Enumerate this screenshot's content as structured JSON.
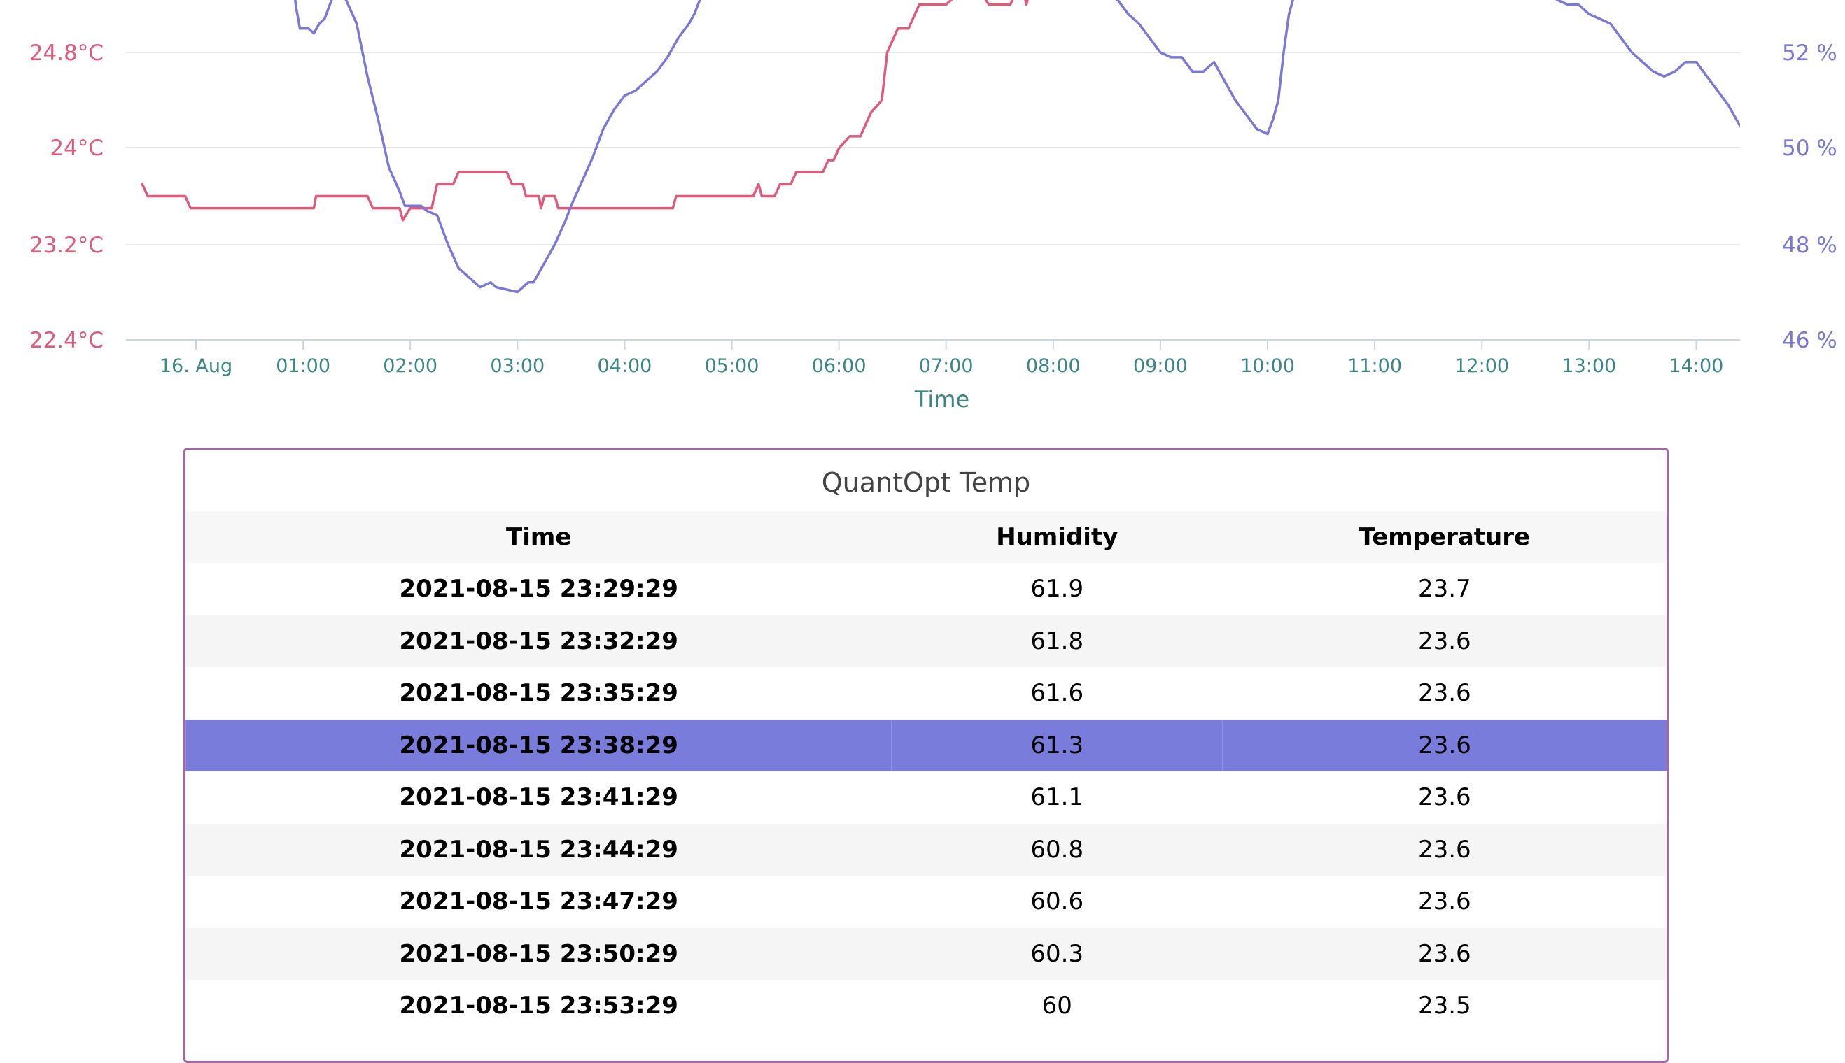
{
  "chart_data": {
    "type": "line",
    "xlabel": "Time",
    "x_ticks": [
      "16. Aug",
      "01:00",
      "02:00",
      "03:00",
      "04:00",
      "05:00",
      "06:00",
      "07:00",
      "08:00",
      "09:00",
      "10:00",
      "11:00",
      "12:00",
      "13:00",
      "14:00"
    ],
    "y_left_ticks": [
      "24.8°C",
      "24°C",
      "23.2°C",
      "22.4°C"
    ],
    "y_right_ticks": [
      "52 %",
      "50 %",
      "48 %",
      "46 %"
    ],
    "y_left_range": [
      22.4,
      25.2
    ],
    "y_right_range": [
      46,
      53
    ],
    "grid": true,
    "colors": {
      "temperature": "#e05a7c",
      "humidity": "#7a7ad6"
    },
    "series": [
      {
        "name": "Temperature",
        "axis": "left",
        "points": [
          [
            -0.5,
            23.7
          ],
          [
            -0.45,
            23.6
          ],
          [
            -0.1,
            23.6
          ],
          [
            -0.05,
            23.5
          ],
          [
            0,
            23.5
          ],
          [
            0.5,
            23.5
          ],
          [
            1.1,
            23.5
          ],
          [
            1.12,
            23.6
          ],
          [
            1.6,
            23.6
          ],
          [
            1.65,
            23.5
          ],
          [
            1.9,
            23.5
          ],
          [
            1.93,
            23.4
          ],
          [
            2.0,
            23.5
          ],
          [
            2.2,
            23.5
          ],
          [
            2.25,
            23.7
          ],
          [
            2.4,
            23.7
          ],
          [
            2.45,
            23.8
          ],
          [
            2.9,
            23.8
          ],
          [
            2.95,
            23.7
          ],
          [
            3.05,
            23.7
          ],
          [
            3.08,
            23.6
          ],
          [
            3.2,
            23.6
          ],
          [
            3.22,
            23.5
          ],
          [
            3.25,
            23.6
          ],
          [
            3.35,
            23.6
          ],
          [
            3.38,
            23.5
          ],
          [
            4.0,
            23.5
          ],
          [
            4.45,
            23.5
          ],
          [
            4.48,
            23.6
          ],
          [
            5.2,
            23.6
          ],
          [
            5.25,
            23.7
          ],
          [
            5.28,
            23.6
          ],
          [
            5.4,
            23.6
          ],
          [
            5.45,
            23.7
          ],
          [
            5.55,
            23.7
          ],
          [
            5.6,
            23.8
          ],
          [
            5.85,
            23.8
          ],
          [
            5.9,
            23.9
          ],
          [
            5.95,
            23.9
          ],
          [
            6.0,
            24.0
          ],
          [
            6.1,
            24.1
          ],
          [
            6.2,
            24.1
          ],
          [
            6.3,
            24.3
          ],
          [
            6.4,
            24.4
          ],
          [
            6.45,
            24.8
          ],
          [
            6.55,
            25.0
          ],
          [
            6.65,
            25.0
          ],
          [
            6.75,
            25.2
          ],
          [
            7.0,
            25.2
          ],
          [
            7.25,
            25.4
          ],
          [
            7.4,
            25.2
          ],
          [
            7.6,
            25.2
          ],
          [
            7.7,
            25.4
          ],
          [
            7.75,
            25.2
          ],
          [
            7.8,
            25.4
          ]
        ]
      },
      {
        "name": "Humidity",
        "axis": "right",
        "points": [
          [
            0.9,
            54.0
          ],
          [
            0.93,
            53.0
          ],
          [
            0.97,
            52.5
          ],
          [
            1.05,
            52.5
          ],
          [
            1.1,
            52.4
          ],
          [
            1.15,
            52.6
          ],
          [
            1.2,
            52.7
          ],
          [
            1.25,
            53.0
          ],
          [
            1.3,
            53.3
          ],
          [
            1.4,
            53.1
          ],
          [
            1.5,
            52.6
          ],
          [
            1.6,
            51.5
          ],
          [
            1.7,
            50.6
          ],
          [
            1.8,
            49.6
          ],
          [
            1.9,
            49.1
          ],
          [
            1.95,
            48.8
          ],
          [
            2.1,
            48.8
          ],
          [
            2.15,
            48.7
          ],
          [
            2.25,
            48.6
          ],
          [
            2.35,
            48.0
          ],
          [
            2.45,
            47.5
          ],
          [
            2.55,
            47.3
          ],
          [
            2.65,
            47.1
          ],
          [
            2.75,
            47.2
          ],
          [
            2.8,
            47.1
          ],
          [
            2.9,
            47.05
          ],
          [
            3.0,
            47.0
          ],
          [
            3.1,
            47.2
          ],
          [
            3.15,
            47.2
          ],
          [
            3.25,
            47.6
          ],
          [
            3.35,
            48.0
          ],
          [
            3.45,
            48.5
          ],
          [
            3.5,
            48.8
          ],
          [
            3.6,
            49.3
          ],
          [
            3.7,
            49.8
          ],
          [
            3.8,
            50.4
          ],
          [
            3.9,
            50.8
          ],
          [
            4.0,
            51.1
          ],
          [
            4.1,
            51.2
          ],
          [
            4.2,
            51.4
          ],
          [
            4.3,
            51.6
          ],
          [
            4.4,
            51.9
          ],
          [
            4.5,
            52.3
          ],
          [
            4.6,
            52.6
          ],
          [
            4.65,
            52.8
          ],
          [
            4.72,
            53.2
          ],
          [
            4.8,
            53.6
          ],
          [
            7.6,
            53.8
          ],
          [
            7.9,
            53.8
          ],
          [
            8.0,
            53.6
          ],
          [
            8.1,
            53.4
          ],
          [
            8.2,
            53.3
          ],
          [
            8.3,
            53.2
          ],
          [
            8.4,
            53.3
          ],
          [
            8.5,
            53.2
          ],
          [
            8.6,
            53.1
          ],
          [
            8.7,
            52.8
          ],
          [
            8.8,
            52.6
          ],
          [
            8.9,
            52.3
          ],
          [
            9.0,
            52.0
          ],
          [
            9.1,
            51.9
          ],
          [
            9.2,
            51.9
          ],
          [
            9.3,
            51.6
          ],
          [
            9.4,
            51.6
          ],
          [
            9.5,
            51.8
          ],
          [
            9.6,
            51.4
          ],
          [
            9.7,
            51.0
          ],
          [
            9.8,
            50.7
          ],
          [
            9.9,
            50.4
          ],
          [
            10.0,
            50.3
          ],
          [
            10.05,
            50.6
          ],
          [
            10.1,
            51.0
          ],
          [
            10.15,
            52.0
          ],
          [
            10.2,
            52.8
          ],
          [
            10.25,
            53.2
          ],
          [
            10.3,
            53.6
          ],
          [
            12.5,
            53.6
          ],
          [
            12.6,
            53.4
          ],
          [
            12.7,
            53.1
          ],
          [
            12.8,
            53.0
          ],
          [
            12.9,
            53.0
          ],
          [
            13.0,
            52.8
          ],
          [
            13.1,
            52.7
          ],
          [
            13.2,
            52.6
          ],
          [
            13.3,
            52.3
          ],
          [
            13.4,
            52.0
          ],
          [
            13.5,
            51.8
          ],
          [
            13.6,
            51.6
          ],
          [
            13.7,
            51.5
          ],
          [
            13.8,
            51.6
          ],
          [
            13.9,
            51.8
          ],
          [
            14.0,
            51.8
          ],
          [
            14.1,
            51.5
          ],
          [
            14.2,
            51.2
          ],
          [
            14.3,
            50.9
          ],
          [
            14.4,
            50.5
          ],
          [
            14.5,
            50.2
          ],
          [
            14.6,
            50.1
          ]
        ]
      }
    ]
  },
  "table": {
    "title": "QuantOpt Temp",
    "headers": {
      "time": "Time",
      "humidity": "Humidity",
      "temperature": "Temperature"
    },
    "rows": [
      {
        "time": "2021-08-15 23:29:29",
        "humidity": "61.9",
        "temperature": "23.7"
      },
      {
        "time": "2021-08-15 23:32:29",
        "humidity": "61.8",
        "temperature": "23.6"
      },
      {
        "time": "2021-08-15 23:35:29",
        "humidity": "61.6",
        "temperature": "23.6"
      },
      {
        "time": "2021-08-15 23:38:29",
        "humidity": "61.3",
        "temperature": "23.6"
      },
      {
        "time": "2021-08-15 23:41:29",
        "humidity": "61.1",
        "temperature": "23.6"
      },
      {
        "time": "2021-08-15 23:44:29",
        "humidity": "60.8",
        "temperature": "23.6"
      },
      {
        "time": "2021-08-15 23:47:29",
        "humidity": "60.6",
        "temperature": "23.6"
      },
      {
        "time": "2021-08-15 23:50:29",
        "humidity": "60.3",
        "temperature": "23.6"
      },
      {
        "time": "2021-08-15 23:53:29",
        "humidity": "60",
        "temperature": "23.5"
      }
    ],
    "selected_row": 3,
    "colors": {
      "selected": "#7a7cdc",
      "border": "#a466a8"
    }
  }
}
